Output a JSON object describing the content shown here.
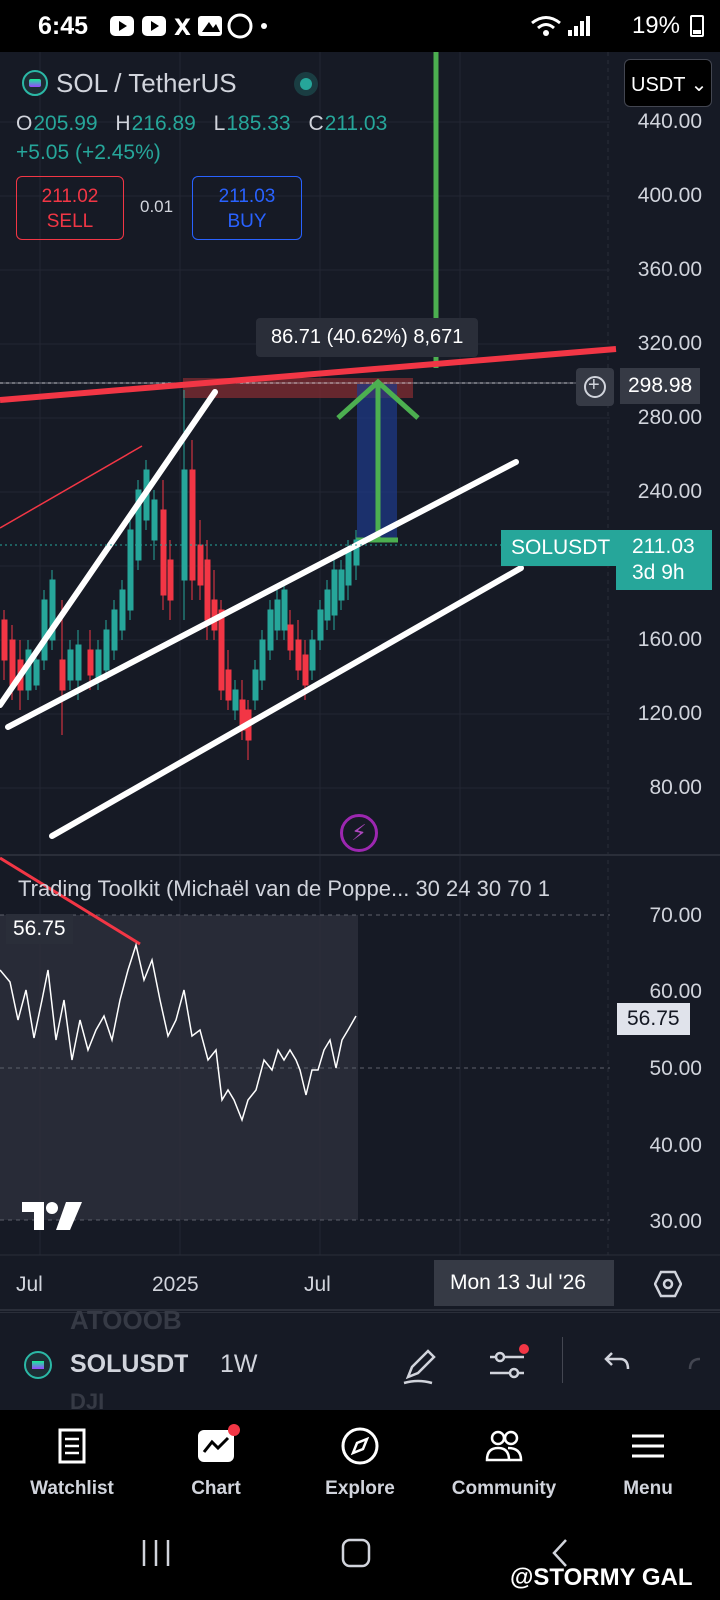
{
  "status_bar": {
    "time": "6:45",
    "battery": "19%"
  },
  "header": {
    "symbol": "SOL / TetherUS",
    "currency": "USDT ⌄",
    "ohlc": {
      "o_label": "O",
      "o": "205.99",
      "h_label": "H",
      "h": "216.89",
      "l_label": "L",
      "l": "185.33",
      "c_label": "C",
      "c": "211.03"
    },
    "change": "+5.05 (+2.45%)",
    "sell": {
      "price": "211.02",
      "label": "SELL"
    },
    "spread": "0.01",
    "buy": {
      "price": "211.03",
      "label": "BUY"
    }
  },
  "price_axis": [
    "440.00",
    "400.00",
    "360.00",
    "320.00",
    "280.00",
    "240.00",
    "160.00",
    "120.00",
    "80.00"
  ],
  "horizontal_line_price": "298.98",
  "measure_label": "86.71 (40.62%) 8,671",
  "last_price": {
    "symbol": "SOLUSDT",
    "price": "211.03",
    "countdown": "3d 9h"
  },
  "indicator": {
    "title": "Trading Toolkit (Michaël van de Poppe... 30 24 30 70 1",
    "value": "56.75",
    "axis": [
      "70.00",
      "60.00",
      "50.00",
      "40.00",
      "30.00"
    ]
  },
  "time_axis": {
    "labels": [
      "Jul",
      "2025",
      "Jul"
    ],
    "crosshair_date": "Mon 13 Jul '26"
  },
  "toolbar": {
    "symbol": "SOLUSDT",
    "interval": "1W",
    "ghost_top": "ATOOOB",
    "ghost_bottom": "DJI"
  },
  "nav": [
    {
      "label": "Watchlist",
      "icon": "watchlist-icon"
    },
    {
      "label": "Chart",
      "icon": "chart-icon"
    },
    {
      "label": "Explore",
      "icon": "compass-icon"
    },
    {
      "label": "Community",
      "icon": "people-icon"
    },
    {
      "label": "Menu",
      "icon": "menu-icon"
    }
  ],
  "watermark": "@STORMY GAL",
  "colors": {
    "background": "#161a25",
    "up": "#26a69a",
    "down": "#f23645",
    "accent_blue": "#2962ff"
  }
}
